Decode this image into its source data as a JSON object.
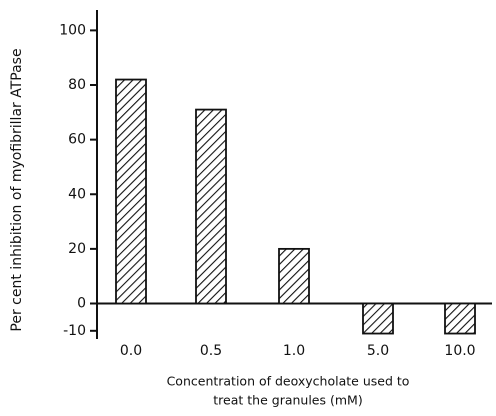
{
  "chart_data": {
    "type": "bar",
    "ylabel": "Per cent inhibition of myofibrillar ATPase",
    "xlabel": [
      "Concentration of deoxycholate used to",
      "treat the granules (mM)"
    ],
    "categories": [
      "0.0",
      "0.5",
      "1.0",
      "5.0",
      "10.0"
    ],
    "values": [
      82,
      71,
      20,
      -11,
      -11
    ],
    "color": "#111111",
    "ylim": [
      -13,
      106
    ],
    "yticks": [
      -10,
      0,
      20,
      40,
      60,
      80,
      100
    ],
    "grid": false
  }
}
